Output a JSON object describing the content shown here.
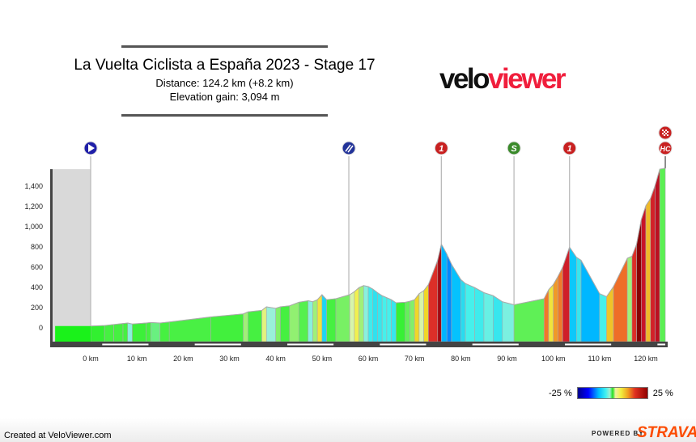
{
  "header": {
    "title": "La Vuelta Ciclista a España 2023 - Stage 17",
    "distance": "Distance: 124.2 km (+8.2 km)",
    "elevation_gain": "Elevation gain: 3,094 m"
  },
  "logo": {
    "part1": "velo",
    "part2": "viewer",
    "color_part1": "#111111",
    "color_part2": "#f01e3c"
  },
  "legend": {
    "min_label": "-25 %",
    "max_label": "25 %"
  },
  "footer": {
    "created": "Created at VeloViewer.com",
    "powered_by": "POWERED BY",
    "strava": "STRAVA",
    "strava_color": "#fc4c02"
  },
  "chart_data": {
    "type": "area",
    "title": "",
    "xlabel": "",
    "ylabel": "",
    "xlim": [
      -8.2,
      124.2
    ],
    "ylim": [
      -150,
      1600
    ],
    "x_ticks": [
      0,
      10,
      20,
      30,
      40,
      50,
      60,
      70,
      80,
      90,
      100,
      110,
      120
    ],
    "x_tick_labels": [
      "0 km",
      "10 km",
      "20 km",
      "30 km",
      "40 km",
      "50 km",
      "60 km",
      "70 km",
      "80 km",
      "90 km",
      "100 km",
      "110 km",
      "120 km"
    ],
    "y_ticks": [
      0,
      200,
      400,
      600,
      800,
      1000,
      1200,
      1400
    ],
    "y_tick_labels": [
      "0",
      "200",
      "400",
      "600",
      "800",
      "1,000",
      "1,200",
      "1,400"
    ],
    "neutral_zone": {
      "from_km": -8.2,
      "to_km": 0,
      "color": "#d9d9d9"
    },
    "color_scale": "gradient % from -25 (dark blue) through 0 (green) to 25 (dark red)",
    "profile": [
      [
        0,
        10
      ],
      [
        3,
        15
      ],
      [
        5,
        25
      ],
      [
        7,
        35
      ],
      [
        8,
        40
      ],
      [
        9,
        30
      ],
      [
        12,
        40
      ],
      [
        13,
        45
      ],
      [
        15,
        40
      ],
      [
        17,
        50
      ],
      [
        26,
        100
      ],
      [
        33,
        130
      ],
      [
        34,
        150
      ],
      [
        37,
        165
      ],
      [
        38,
        200
      ],
      [
        40,
        185
      ],
      [
        41,
        200
      ],
      [
        43,
        210
      ],
      [
        45,
        245
      ],
      [
        47,
        260
      ],
      [
        48,
        250
      ],
      [
        49,
        270
      ],
      [
        50,
        320
      ],
      [
        51,
        270
      ],
      [
        53,
        280
      ],
      [
        56,
        320
      ],
      [
        57,
        350
      ],
      [
        58,
        390
      ],
      [
        59,
        410
      ],
      [
        60,
        400
      ],
      [
        61,
        375
      ],
      [
        62,
        340
      ],
      [
        63,
        310
      ],
      [
        64,
        290
      ],
      [
        65,
        270
      ],
      [
        66,
        240
      ],
      [
        68,
        245
      ],
      [
        69,
        255
      ],
      [
        70,
        270
      ],
      [
        71,
        330
      ],
      [
        72,
        360
      ],
      [
        73,
        420
      ],
      [
        75,
        660
      ],
      [
        75.8,
        820
      ],
      [
        77,
        720
      ],
      [
        78,
        620
      ],
      [
        80,
        470
      ],
      [
        81,
        430
      ],
      [
        83,
        390
      ],
      [
        85,
        340
      ],
      [
        87,
        310
      ],
      [
        89,
        250
      ],
      [
        91.5,
        220
      ],
      [
        98,
        280
      ],
      [
        99,
        370
      ],
      [
        100,
        420
      ],
      [
        101,
        500
      ],
      [
        102,
        590
      ],
      [
        103.5,
        790
      ],
      [
        105,
        690
      ],
      [
        106,
        660
      ],
      [
        110,
        330
      ],
      [
        111.5,
        300
      ],
      [
        113,
        400
      ],
      [
        116,
        680
      ],
      [
        117,
        700
      ],
      [
        118,
        820
      ],
      [
        119,
        1060
      ],
      [
        120,
        1200
      ],
      [
        121,
        1270
      ],
      [
        122,
        1400
      ],
      [
        123,
        1560
      ],
      [
        124.2,
        1570
      ]
    ],
    "markers": [
      {
        "km": 0,
        "type": "start",
        "label": "",
        "color": "#1f1fa8"
      },
      {
        "km": 55.8,
        "type": "feed",
        "label": "",
        "color": "#223399"
      },
      {
        "km": 75.8,
        "type": "climb-cat-1",
        "label": "1",
        "color": "#c82020"
      },
      {
        "km": 91.5,
        "type": "sprint",
        "label": "S",
        "color": "#3a8a2a"
      },
      {
        "km": 103.5,
        "type": "climb-cat-1",
        "label": "1",
        "color": "#c82020"
      },
      {
        "km": 124.2,
        "type": "climb-hc-finish",
        "label": "HC",
        "color": "#c82020"
      }
    ]
  }
}
